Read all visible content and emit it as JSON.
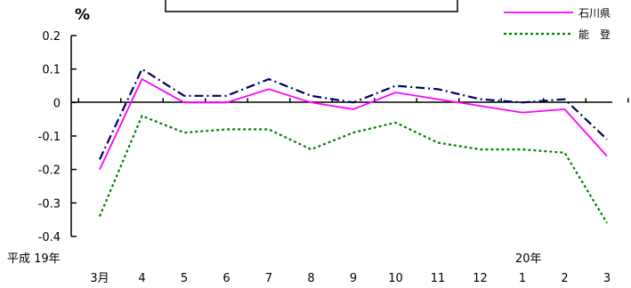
{
  "chart_data": {
    "type": "line",
    "ylabel": "%",
    "ylim": [
      -0.4,
      0.2
    ],
    "yticks": [
      0.2,
      0.1,
      0,
      -0.1,
      -0.2,
      -0.3,
      -0.4
    ],
    "ytick_labels": [
      "0.2",
      "0.1",
      "0",
      "-0.1",
      "-0.2",
      "-0.3",
      "-0.4"
    ],
    "categories": [
      "3月",
      "4",
      "5",
      "6",
      "7",
      "8",
      "9",
      "10",
      "11",
      "12",
      "1",
      "2",
      "3"
    ],
    "year_labels": [
      {
        "text": "平成 19年",
        "category_index": 0
      },
      {
        "text": "20年",
        "category_index": 10
      }
    ],
    "grid": false,
    "legend_position": "top-right",
    "series": [
      {
        "name": "",
        "color": "#000066",
        "dash": "dashdot",
        "values": [
          -0.17,
          0.1,
          0.02,
          0.02,
          0.07,
          0.02,
          0.0,
          0.05,
          0.04,
          0.01,
          0.0,
          0.01,
          -0.11
        ]
      },
      {
        "name": "石川県",
        "color": "#ff00ff",
        "dash": "solid",
        "values": [
          -0.2,
          0.07,
          0.0,
          0.0,
          0.04,
          0.0,
          -0.02,
          0.03,
          0.01,
          -0.01,
          -0.03,
          -0.02,
          -0.16
        ]
      },
      {
        "name": "能　登",
        "color": "#008000",
        "dash": "dotted",
        "values": [
          -0.34,
          -0.04,
          -0.09,
          -0.08,
          -0.08,
          -0.14,
          -0.09,
          -0.06,
          -0.12,
          -0.14,
          -0.14,
          -0.15,
          -0.36
        ]
      }
    ]
  }
}
